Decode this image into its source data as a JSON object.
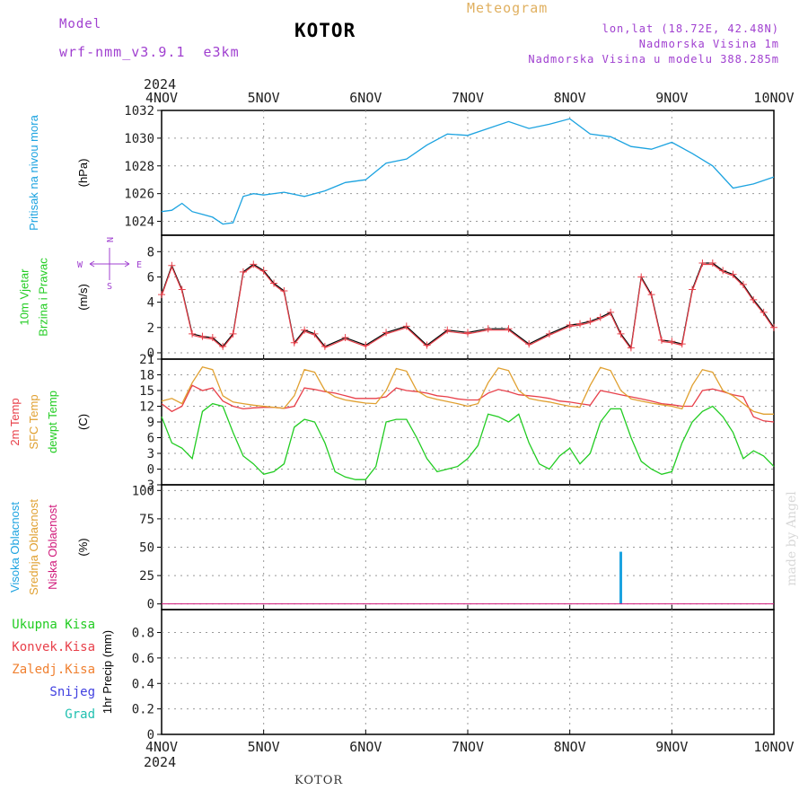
{
  "header": {
    "model_label": "Model",
    "model_name": "wrf-nmm_v3.9.1  e3km",
    "station": "KOTOR",
    "product": "Meteogram",
    "coords": "lon,lat (18.72E, 42.48N)",
    "elevation": "Nadmorska Visina 1m",
    "model_elevation": "Nadmorska Visina u modelu 388.285m",
    "footer_station": "KOTOR",
    "credit": "made by Angel"
  },
  "colors": {
    "pressure": "#1ca3e0",
    "wind_speed": "#e8404a",
    "wind_speed_alt": "#000000",
    "temp2m": "#e8404a",
    "sfc_temp": "#e0a030",
    "dewpoint": "#22cc22",
    "cloud_high": "#1ca3e0",
    "cloud_mid": "#e0a030",
    "cloud_low": "#d0187a",
    "precip_total": "#22cc22",
    "precip_conv": "#e8404a",
    "precip_frozen": "#f08030",
    "snow": "#4040e0",
    "graupel": "#20c0b0",
    "compass": "#a040d0"
  },
  "chart_data": {
    "type": "line",
    "x_ticks": [
      "4NOV",
      "5NOV",
      "6NOV",
      "7NOV",
      "8NOV",
      "9NOV",
      "10NOV"
    ],
    "year": "2024",
    "panels": [
      {
        "id": "pressure",
        "ylabel_parts": [
          "Pritisak na nivou mora"
        ],
        "unit": "(hPa)",
        "ylim": [
          1023,
          1032
        ],
        "yticks": [
          1024,
          1026,
          1028,
          1030,
          1032
        ],
        "series": [
          {
            "x": [
              0,
              0.1,
              0.2,
              0.3,
              0.4,
              0.5,
              0.6,
              0.7,
              0.8,
              0.9,
              1.0,
              1.2,
              1.4,
              1.6,
              1.8,
              2.0,
              2.2,
              2.4,
              2.6,
              2.8,
              3.0,
              3.2,
              3.4,
              3.6,
              3.8,
              4.0,
              4.2,
              4.4,
              4.6,
              4.8,
              5.0,
              5.2,
              5.4,
              5.6,
              5.8,
              6.0
            ],
            "y": [
              1024.7,
              1024.8,
              1025.3,
              1024.7,
              1024.5,
              1024.3,
              1023.8,
              1023.9,
              1025.8,
              1026.0,
              1025.9,
              1026.1,
              1025.8,
              1026.2,
              1026.8,
              1027.0,
              1028.2,
              1028.5,
              1029.5,
              1030.3,
              1030.2,
              1030.7,
              1031.2,
              1030.7,
              1031.0,
              1031.4,
              1030.3,
              1030.1,
              1029.4,
              1029.2,
              1029.7,
              1028.9,
              1028.0,
              1026.4,
              1026.7,
              1027.2
            ],
            "color_key": "pressure"
          }
        ]
      },
      {
        "id": "wind",
        "ylabel_parts": [
          "10m Vjetar",
          "Brzina i Pravac"
        ],
        "unit": "(m/s)",
        "ylim": [
          -0.5,
          9.3
        ],
        "yticks": [
          0,
          2,
          4,
          6,
          8
        ],
        "compass": [
          "N",
          "W",
          "E",
          "S"
        ],
        "series": [
          {
            "x": [
              0,
              0.1,
              0.2,
              0.3,
              0.4,
              0.5,
              0.6,
              0.7,
              0.8,
              0.9,
              1.0,
              1.1,
              1.2,
              1.3,
              1.4,
              1.5,
              1.6,
              1.8,
              2.0,
              2.2,
              2.4,
              2.6,
              2.8,
              3.0,
              3.2,
              3.4,
              3.6,
              3.8,
              4.0,
              4.1,
              4.2,
              4.3,
              4.4,
              4.5,
              4.6,
              4.7,
              4.8,
              4.9,
              5.0,
              5.1,
              5.2,
              5.3,
              5.4,
              5.5,
              5.6,
              5.7,
              5.8,
              5.9,
              6.0
            ],
            "y": [
              4.6,
              6.9,
              5.0,
              1.5,
              1.3,
              1.2,
              0.5,
              1.5,
              6.4,
              7.0,
              6.5,
              5.5,
              4.9,
              0.8,
              1.8,
              1.5,
              0.5,
              1.2,
              0.6,
              1.6,
              2.1,
              0.6,
              1.8,
              1.6,
              1.9,
              1.9,
              0.7,
              1.5,
              2.2,
              2.3,
              2.5,
              2.8,
              3.2,
              1.5,
              0.4,
              6.0,
              4.6,
              1.0,
              0.9,
              0.7,
              5.0,
              7.1,
              7.1,
              6.5,
              6.2,
              5.4,
              4.2,
              3.2,
              2.0
            ],
            "color_key": "wind_speed"
          }
        ]
      },
      {
        "id": "temperature",
        "ylabel_parts": [
          "2m Temp",
          "SFC Temp",
          "dewpt Temp"
        ],
        "unit": "(C)",
        "ylim": [
          -3,
          21
        ],
        "yticks": [
          -3,
          0,
          3,
          6,
          9,
          12,
          15,
          18,
          21
        ],
        "series": [
          {
            "x": [
              0,
              0.1,
              0.2,
              0.3,
              0.4,
              0.5,
              0.6,
              0.7,
              0.8,
              0.9,
              1.0,
              1.1,
              1.2,
              1.3,
              1.4,
              1.5,
              1.6,
              1.7,
              1.8,
              1.9,
              2.0,
              2.1,
              2.2,
              2.3,
              2.4,
              2.5,
              2.6,
              2.7,
              2.8,
              2.9,
              3.0,
              3.1,
              3.2,
              3.3,
              3.4,
              3.5,
              3.6,
              3.7,
              3.8,
              3.9,
              4.0,
              4.1,
              4.2,
              4.3,
              4.4,
              4.5,
              4.6,
              4.7,
              4.8,
              4.9,
              5.0,
              5.1,
              5.2,
              5.3,
              5.4,
              5.5,
              5.6,
              5.7,
              5.8,
              5.9,
              6.0
            ],
            "y": [
              12.5,
              11.0,
              12.0,
              16.0,
              15.0,
              15.5,
              13.0,
              12.0,
              11.5,
              11.7,
              11.8,
              11.8,
              11.6,
              12.0,
              15.5,
              15.2,
              14.8,
              14.5,
              14.0,
              13.5,
              13.5,
              13.5,
              13.8,
              15.5,
              15.0,
              14.8,
              14.5,
              14.0,
              13.8,
              13.4,
              13.2,
              13.2,
              14.5,
              15.2,
              14.8,
              14.2,
              14.0,
              13.8,
              13.5,
              13.0,
              12.8,
              12.5,
              12.2,
              15.0,
              14.6,
              14.2,
              13.8,
              13.4,
              13.0,
              12.5,
              12.3,
              12.0,
              12.0,
              15.0,
              15.3,
              14.8,
              14.2,
              13.8,
              10.0,
              9.2,
              9.0
            ],
            "color_key": "temp2m"
          },
          {
            "x": [
              0,
              0.1,
              0.2,
              0.3,
              0.4,
              0.5,
              0.6,
              0.7,
              0.8,
              0.9,
              1.0,
              1.1,
              1.2,
              1.3,
              1.4,
              1.5,
              1.6,
              1.7,
              1.8,
              1.9,
              2.0,
              2.1,
              2.2,
              2.3,
              2.4,
              2.5,
              2.6,
              2.7,
              2.8,
              2.9,
              3.0,
              3.1,
              3.2,
              3.3,
              3.4,
              3.5,
              3.6,
              3.7,
              3.8,
              3.9,
              4.0,
              4.1,
              4.2,
              4.3,
              4.4,
              4.5,
              4.6,
              4.7,
              4.8,
              4.9,
              5.0,
              5.1,
              5.2,
              5.3,
              5.4,
              5.5,
              5.6,
              5.7,
              5.8,
              5.9,
              6.0
            ],
            "y": [
              13.0,
              13.5,
              12.5,
              16.5,
              19.5,
              19.0,
              14.0,
              12.8,
              12.5,
              12.2,
              12.0,
              11.8,
              11.6,
              14.0,
              19.0,
              18.5,
              15.0,
              13.8,
              13.2,
              12.9,
              12.6,
              12.5,
              15.0,
              19.2,
              18.7,
              15.0,
              13.8,
              13.3,
              12.9,
              12.5,
              12.0,
              12.5,
              16.5,
              19.3,
              18.8,
              15.0,
              13.5,
              13.1,
              12.8,
              12.4,
              12.0,
              11.8,
              16.0,
              19.4,
              18.8,
              15.0,
              13.4,
              13.0,
              12.6,
              12.3,
              12.0,
              11.5,
              16.0,
              19.0,
              18.5,
              15.0,
              14.0,
              12.5,
              11.0,
              10.5,
              10.5
            ],
            "color_key": "sfc_temp"
          },
          {
            "x": [
              0,
              0.1,
              0.2,
              0.3,
              0.4,
              0.5,
              0.6,
              0.7,
              0.8,
              0.9,
              1.0,
              1.1,
              1.2,
              1.3,
              1.4,
              1.5,
              1.6,
              1.7,
              1.8,
              1.9,
              2.0,
              2.1,
              2.2,
              2.3,
              2.4,
              2.5,
              2.6,
              2.7,
              2.8,
              2.9,
              3.0,
              3.1,
              3.2,
              3.3,
              3.4,
              3.5,
              3.6,
              3.7,
              3.8,
              3.9,
              4.0,
              4.1,
              4.2,
              4.3,
              4.4,
              4.5,
              4.6,
              4.7,
              4.8,
              4.9,
              5.0,
              5.1,
              5.2,
              5.3,
              5.4,
              5.5,
              5.6,
              5.7,
              5.8,
              5.9,
              6.0
            ],
            "y": [
              10.0,
              5.0,
              4.0,
              2.0,
              11.0,
              12.5,
              12.0,
              7.0,
              2.5,
              1.0,
              -1.0,
              -0.5,
              1.0,
              8.0,
              9.5,
              9.0,
              5.0,
              -0.5,
              -1.5,
              -2.0,
              -2.0,
              0.5,
              9.0,
              9.5,
              9.5,
              6.0,
              2.0,
              -0.5,
              0.0,
              0.5,
              2.0,
              4.5,
              10.5,
              10.0,
              9.0,
              10.5,
              5.0,
              1.0,
              0.0,
              2.5,
              4.0,
              1.0,
              3.0,
              9.0,
              11.5,
              11.5,
              6.0,
              1.5,
              0.0,
              -1.0,
              -0.5,
              5.0,
              9.0,
              11.0,
              12.0,
              10.0,
              7.0,
              2.0,
              3.5,
              2.5,
              0.5
            ],
            "color_key": "dewpoint"
          }
        ]
      },
      {
        "id": "clouds",
        "ylabel_parts": [
          "Visoka Oblacnost",
          "Srednja Oblacnost",
          "Niska Oblacnost"
        ],
        "unit": "(%)",
        "ylim": [
          -5,
          105
        ],
        "yticks": [
          0,
          25,
          50,
          75,
          100
        ],
        "bars": [
          {
            "x": 4.5,
            "y": 46,
            "color_key": "cloud_high"
          }
        ]
      },
      {
        "id": "precip",
        "ylabel_parts": [
          "Ukupna Kisa",
          "Konvek.Kisa",
          "Zaledj.Kisa",
          "Snijeg",
          "Grad"
        ],
        "unit": "1hr Precip (mm)",
        "ylim": [
          0,
          0.98
        ],
        "yticks": [
          0,
          0.2,
          0.4,
          0.6,
          0.8
        ],
        "ytick_labels": [
          "0",
          "0.2",
          "0.4",
          "0.6",
          "0.8"
        ]
      }
    ]
  }
}
